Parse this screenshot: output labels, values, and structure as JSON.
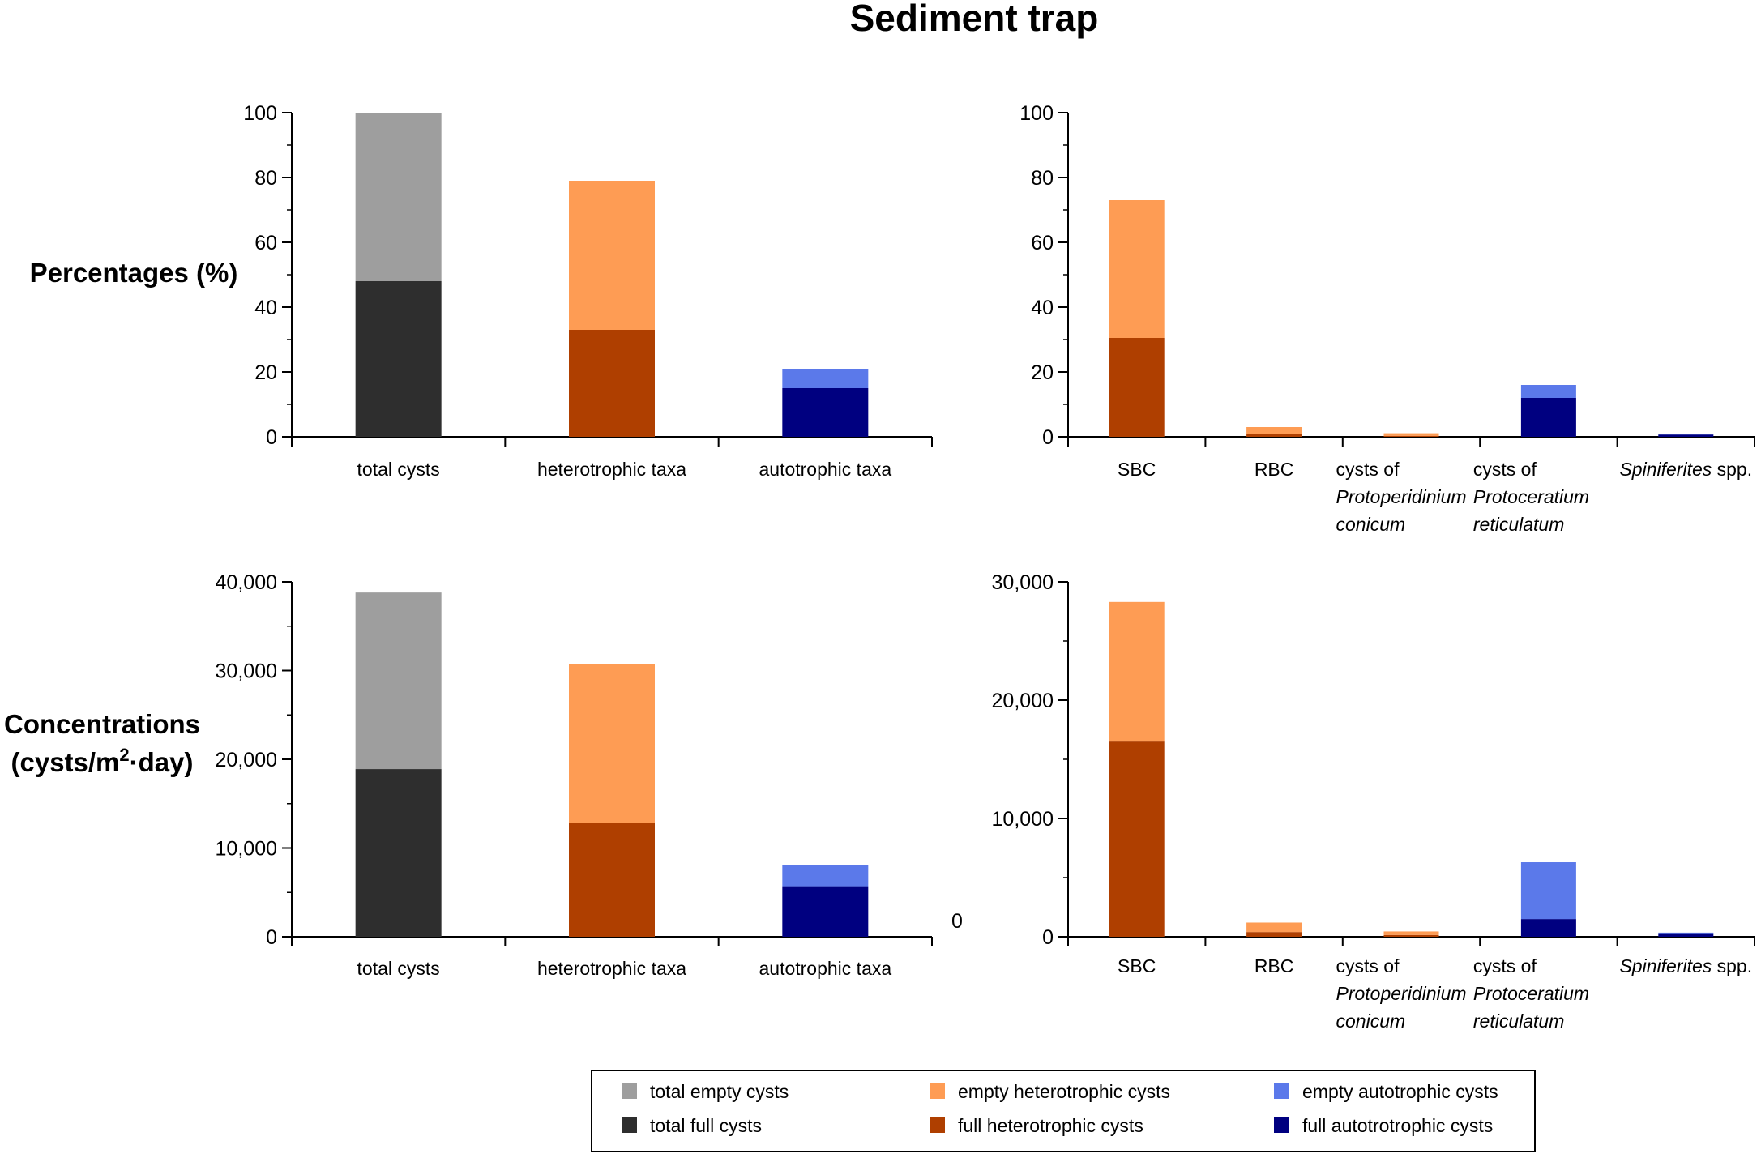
{
  "title": "Sediment trap",
  "row_labels": {
    "percentages": "Percentages (%)",
    "concentrations_line1": "Concentrations",
    "concentrations_line2_a": "(cysts/m",
    "concentrations_line2_sup": "2",
    "concentrations_line2_b": "·day)"
  },
  "stray_zero_label": "0",
  "colors": {
    "total_empty": "#9e9e9e",
    "total_full": "#2e2e2e",
    "het_empty": "#fe9c54",
    "het_full": "#af3f00",
    "auto_empty": "#5b79ea",
    "auto_full": "#000080"
  },
  "legend": [
    {
      "label": "total empty cysts",
      "color": "#9e9e9e"
    },
    {
      "label": "empty heterotrophic cysts",
      "color": "#fe9c54"
    },
    {
      "label": "empty autotrophic cysts",
      "color": "#5b79ea"
    },
    {
      "label": "total full cysts",
      "color": "#2e2e2e"
    },
    {
      "label": "full heterotrophic cysts",
      "color": "#af3f00"
    },
    {
      "label": "full autotrotrophic cysts",
      "color": "#000080"
    }
  ],
  "chart_data": [
    {
      "id": "pct_groups",
      "type": "bar",
      "stacked": true,
      "ylabel": "Percentages (%)",
      "ylim": [
        0,
        100
      ],
      "yticks": [
        0,
        20,
        40,
        60,
        80,
        100
      ],
      "ytick_labels": [
        "0",
        "20",
        "40",
        "60",
        "80",
        "100"
      ],
      "categories": [
        {
          "lines": [
            {
              "t": "total cysts",
              "i": false
            }
          ]
        },
        {
          "lines": [
            {
              "t": "heterotrophic taxa",
              "i": false
            }
          ]
        },
        {
          "lines": [
            {
              "t": "autotrophic taxa",
              "i": false
            }
          ]
        }
      ],
      "stacks": [
        {
          "full": 48,
          "empty": 52,
          "full_color": "#2e2e2e",
          "empty_color": "#9e9e9e"
        },
        {
          "full": 33,
          "empty": 46,
          "full_color": "#af3f00",
          "empty_color": "#fe9c54"
        },
        {
          "full": 15,
          "empty": 6,
          "full_color": "#000080",
          "empty_color": "#5b79ea"
        }
      ]
    },
    {
      "id": "pct_taxa",
      "type": "bar",
      "stacked": true,
      "ylabel": "Percentages (%)",
      "ylim": [
        0,
        100
      ],
      "yticks": [
        0,
        20,
        40,
        60,
        80,
        100
      ],
      "ytick_labels": [
        "0",
        "20",
        "40",
        "60",
        "80",
        "100"
      ],
      "categories": [
        {
          "lines": [
            {
              "t": "SBC",
              "i": false
            }
          ]
        },
        {
          "lines": [
            {
              "t": "RBC",
              "i": false
            }
          ]
        },
        {
          "lines": [
            {
              "t": "cysts of",
              "i": false
            },
            {
              "t": "Protoperidinium",
              "i": true
            },
            {
              "t": "conicum",
              "i": true
            }
          ]
        },
        {
          "lines": [
            {
              "t": "cysts of",
              "i": false
            },
            {
              "t": "Protoceratium",
              "i": true
            },
            {
              "t": "reticulatum",
              "i": true
            }
          ]
        },
        {
          "lines": [
            {
              "parts": [
                {
                  "t": "Spiniferites",
                  "i": true
                },
                {
                  "t": " spp.",
                  "i": false
                }
              ]
            }
          ]
        }
      ],
      "stacks": [
        {
          "full": 30.5,
          "empty": 42.5,
          "full_color": "#af3f00",
          "empty_color": "#fe9c54"
        },
        {
          "full": 0.8,
          "empty": 2.2,
          "full_color": "#af3f00",
          "empty_color": "#fe9c54"
        },
        {
          "full": 0.3,
          "empty": 0.8,
          "full_color": "#af3f00",
          "empty_color": "#fe9c54"
        },
        {
          "full": 12,
          "empty": 4,
          "full_color": "#000080",
          "empty_color": "#5b79ea"
        },
        {
          "full": 0.7,
          "empty": 0.1,
          "full_color": "#000080",
          "empty_color": "#5b79ea"
        }
      ]
    },
    {
      "id": "conc_groups",
      "type": "bar",
      "stacked": true,
      "ylabel": "Concentrations (cysts/m2·day)",
      "ylim": [
        0,
        40000
      ],
      "yticks": [
        0,
        10000,
        20000,
        30000,
        40000
      ],
      "ytick_labels": [
        "0",
        "10,000",
        "20,000",
        "30,000",
        "40,000"
      ],
      "categories": [
        {
          "lines": [
            {
              "t": "total cysts",
              "i": false
            }
          ]
        },
        {
          "lines": [
            {
              "t": "heterotrophic taxa",
              "i": false
            }
          ]
        },
        {
          "lines": [
            {
              "t": "autotrophic taxa",
              "i": false
            }
          ]
        }
      ],
      "stacks": [
        {
          "full": 18900,
          "empty": 19900,
          "full_color": "#2e2e2e",
          "empty_color": "#9e9e9e"
        },
        {
          "full": 12800,
          "empty": 17900,
          "full_color": "#af3f00",
          "empty_color": "#fe9c54"
        },
        {
          "full": 5700,
          "empty": 2400,
          "full_color": "#000080",
          "empty_color": "#5b79ea"
        }
      ]
    },
    {
      "id": "conc_taxa",
      "type": "bar",
      "stacked": true,
      "ylabel": "Concentrations (cysts/m2·day)",
      "ylim": [
        0,
        30000
      ],
      "yticks": [
        0,
        10000,
        20000,
        30000
      ],
      "ytick_labels": [
        "0",
        "10,000",
        "20,000",
        "30,000"
      ],
      "categories": [
        {
          "lines": [
            {
              "t": "SBC",
              "i": false
            }
          ]
        },
        {
          "lines": [
            {
              "t": "RBC",
              "i": false
            }
          ]
        },
        {
          "lines": [
            {
              "t": "cysts of",
              "i": false
            },
            {
              "t": "Protoperidinium",
              "i": true
            },
            {
              "t": "conicum",
              "i": true
            }
          ]
        },
        {
          "lines": [
            {
              "t": "cysts of",
              "i": false
            },
            {
              "t": "Protoceratium",
              "i": true
            },
            {
              "t": "reticulatum",
              "i": true
            }
          ]
        },
        {
          "lines": [
            {
              "parts": [
                {
                  "t": "Spiniferites",
                  "i": true
                },
                {
                  "t": " spp.",
                  "i": false
                }
              ]
            }
          ]
        }
      ],
      "stacks": [
        {
          "full": 16500,
          "empty": 11800,
          "full_color": "#af3f00",
          "empty_color": "#fe9c54"
        },
        {
          "full": 400,
          "empty": 800,
          "full_color": "#af3f00",
          "empty_color": "#fe9c54"
        },
        {
          "full": 150,
          "empty": 300,
          "full_color": "#af3f00",
          "empty_color": "#fe9c54"
        },
        {
          "full": 1500,
          "empty": 4800,
          "full_color": "#000080",
          "empty_color": "#5b79ea"
        },
        {
          "full": 300,
          "empty": 50,
          "full_color": "#000080",
          "empty_color": "#5b79ea"
        }
      ]
    }
  ]
}
